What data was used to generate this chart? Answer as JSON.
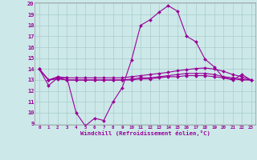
{
  "xlabel": "Windchill (Refroidissement éolien,°C)",
  "background_color": "#cce8e8",
  "line_color": "#990099",
  "grid_color": "#aacccc",
  "x_values": [
    0,
    1,
    2,
    3,
    4,
    5,
    6,
    7,
    8,
    9,
    10,
    11,
    12,
    13,
    14,
    15,
    16,
    17,
    18,
    19,
    20,
    21,
    22,
    23
  ],
  "series1": [
    14.0,
    12.5,
    13.2,
    13.2,
    10.0,
    8.8,
    9.5,
    9.3,
    11.0,
    12.3,
    14.8,
    18.0,
    18.5,
    19.2,
    19.8,
    19.3,
    17.0,
    16.5,
    14.9,
    14.2,
    13.2,
    13.0,
    13.5,
    13.0
  ],
  "series2": [
    14.0,
    13.0,
    13.3,
    13.2,
    13.2,
    13.2,
    13.2,
    13.2,
    13.2,
    13.2,
    13.3,
    13.4,
    13.5,
    13.6,
    13.7,
    13.85,
    13.95,
    14.05,
    14.1,
    14.0,
    13.8,
    13.5,
    13.3,
    13.0
  ],
  "series3": [
    14.0,
    13.0,
    13.2,
    13.0,
    13.0,
    13.0,
    13.0,
    13.0,
    13.0,
    13.0,
    13.1,
    13.2,
    13.2,
    13.3,
    13.4,
    13.5,
    13.6,
    13.6,
    13.6,
    13.5,
    13.3,
    13.2,
    13.1,
    13.0
  ],
  "series4": [
    14.0,
    13.0,
    13.1,
    13.0,
    13.0,
    13.0,
    13.0,
    13.0,
    13.0,
    13.0,
    13.0,
    13.1,
    13.1,
    13.2,
    13.3,
    13.3,
    13.4,
    13.4,
    13.4,
    13.3,
    13.2,
    13.1,
    13.0,
    13.0
  ],
  "ylim": [
    9,
    20
  ],
  "yticks": [
    9,
    10,
    11,
    12,
    13,
    14,
    15,
    16,
    17,
    18,
    19,
    20
  ],
  "xticks": [
    0,
    1,
    2,
    3,
    4,
    5,
    6,
    7,
    8,
    9,
    10,
    11,
    12,
    13,
    14,
    15,
    16,
    17,
    18,
    19,
    20,
    21,
    22,
    23
  ]
}
